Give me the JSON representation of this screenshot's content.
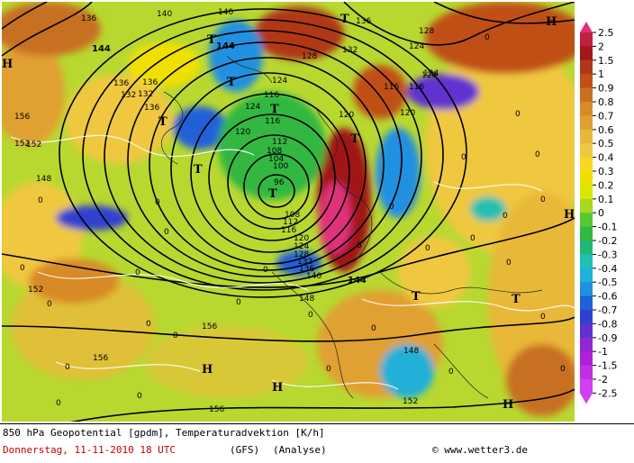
{
  "footer": {
    "title": "850 hPa Geopotential [gpdm], Temperaturadvektion [K/h]",
    "date": "Donnerstag, 11-11-2010  18 UTC",
    "model": "(GFS)",
    "analysis": "(Analyse)",
    "copyright": "www.wetter3.de"
  },
  "legend": {
    "values": [
      "2.5",
      "2",
      "1.5",
      "1",
      "0.9",
      "0.8",
      "0.7",
      "0.6",
      "0.5",
      "0.4",
      "0.3",
      "0.2",
      "0.1",
      "0",
      "-0.1",
      "-0.2",
      "-0.3",
      "-0.4",
      "-0.5",
      "-0.6",
      "-0.7",
      "-0.8",
      "-0.9",
      "-1",
      "-1.5",
      "-2",
      "-2.5"
    ],
    "colors": [
      "#e0307a",
      "#c02040",
      "#a01818",
      "#b03818",
      "#c05018",
      "#c87020",
      "#d88a28",
      "#e0a030",
      "#e8b838",
      "#f0c840",
      "#f8d820",
      "#f0e000",
      "#d8e800",
      "#a8d820",
      "#58c830",
      "#30b840",
      "#20b878",
      "#20c0b0",
      "#20b0d8",
      "#2090e0",
      "#2060d8",
      "#3040d0",
      "#6030d0",
      "#9028d0",
      "#b020d8",
      "#c030e0",
      "#d040f0"
    ]
  },
  "map": {
    "contour_labels": [
      "136",
      "140",
      "144",
      "140",
      "136",
      "132",
      "128",
      "124",
      "136",
      "144",
      "132",
      "156",
      "136",
      "128",
      "124",
      "116",
      "152",
      "120",
      "116",
      "124",
      "120",
      "132",
      "116",
      "120",
      "108",
      "112",
      "104",
      "148",
      "100",
      "96",
      "108",
      "112",
      "116",
      "120",
      "124",
      "128",
      "132",
      "136",
      "140",
      "144",
      "148",
      "152",
      "156",
      "152",
      "156",
      "148",
      "156",
      "152",
      "136",
      "116",
      "124",
      "128"
    ],
    "pressure_symbols": [
      "T",
      "T",
      "T",
      "T",
      "T",
      "T",
      "T",
      "T",
      "T",
      "T",
      "H",
      "H",
      "H",
      "H",
      "H",
      "H"
    ],
    "zero_labels": [
      "0",
      "0",
      "0",
      "0",
      "0",
      "0",
      "0",
      "0",
      "0",
      "0",
      "0",
      "0",
      "0",
      "0",
      "0",
      "0",
      "0",
      "0",
      "0",
      "0",
      "0",
      "0",
      "0",
      "0",
      "0",
      "0",
      "0",
      "0",
      "0",
      "0"
    ]
  }
}
